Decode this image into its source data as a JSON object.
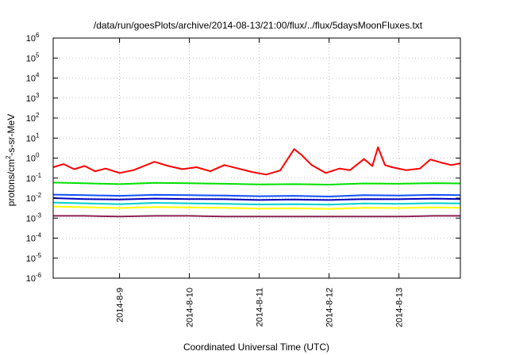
{
  "chart_data": {
    "type": "line",
    "title": "/data/run/goesPlots/archive/2014-08-13/21:00/flux/../flux/5daysMoonFluxes.txt",
    "xlabel": "Coordinated Universal Time (UTC)",
    "ylabel": {
      "pre": "protons/cm",
      "sup": "2",
      "post": "-s-sr-MeV"
    },
    "yscale": "log",
    "ylim": [
      1e-06,
      1000000.0
    ],
    "xlim": [
      -0.95,
      4.88
    ],
    "grid": true,
    "x_ticks": [
      {
        "v": 0,
        "label": "2014-8-9"
      },
      {
        "v": 1,
        "label": "2014-8-10"
      },
      {
        "v": 2,
        "label": "2014-8-11"
      },
      {
        "v": 3,
        "label": "2014-8-12"
      },
      {
        "v": 4,
        "label": "2014-8-13"
      }
    ],
    "y_ticks": [
      {
        "v": 1e-06,
        "base": "10",
        "exp": "-6"
      },
      {
        "v": 1e-05,
        "base": "10",
        "exp": "-5"
      },
      {
        "v": 0.0001,
        "base": "10",
        "exp": "-4"
      },
      {
        "v": 0.001,
        "base": "10",
        "exp": "-3"
      },
      {
        "v": 0.01,
        "base": "10",
        "exp": "-2"
      },
      {
        "v": 0.1,
        "base": "10",
        "exp": "-1"
      },
      {
        "v": 1,
        "base": "10",
        "exp": "0"
      },
      {
        "v": 10,
        "base": "10",
        "exp": "1"
      },
      {
        "v": 100,
        "base": "10",
        "exp": "2"
      },
      {
        "v": 1000,
        "base": "10",
        "exp": "3"
      },
      {
        "v": 10000,
        "base": "10",
        "exp": "4"
      },
      {
        "v": 100000,
        "base": "10",
        "exp": "5"
      },
      {
        "v": 1000000,
        "base": "10",
        "exp": "6"
      }
    ],
    "series": [
      {
        "color": "#ffff00",
        "x": [
          -0.95,
          -0.5,
          0,
          0.5,
          1,
          1.5,
          2,
          2.5,
          3,
          3.5,
          4,
          4.5,
          4.88
        ],
        "values": [
          0.0038,
          0.0035,
          0.0032,
          0.0036,
          0.0034,
          0.0033,
          0.003,
          0.0031,
          0.0029,
          0.0033,
          0.0032,
          0.0034,
          0.0033
        ]
      },
      {
        "color": "#00d0d0",
        "x": [
          -0.95,
          -0.5,
          0,
          0.5,
          1,
          1.5,
          2,
          2.5,
          3,
          3.5,
          4,
          4.5,
          4.88
        ],
        "values": [
          0.006,
          0.0055,
          0.005,
          0.0058,
          0.0055,
          0.0052,
          0.0048,
          0.005,
          0.0047,
          0.0054,
          0.0052,
          0.0056,
          0.0054
        ]
      },
      {
        "color": "#0000c0",
        "x": [
          -0.95,
          -0.5,
          0,
          0.5,
          1,
          1.5,
          2,
          2.5,
          3,
          3.5,
          4,
          4.5,
          4.88
        ],
        "values": [
          0.01,
          0.009,
          0.0085,
          0.0095,
          0.009,
          0.0088,
          0.008,
          0.0085,
          0.008,
          0.009,
          0.0088,
          0.0095,
          0.009
        ]
      },
      {
        "color": "#1050ff",
        "x": [
          -0.95,
          -0.5,
          0,
          0.5,
          1,
          1.5,
          2,
          2.5,
          3,
          3.5,
          4,
          4.5,
          4.88
        ],
        "values": [
          0.015,
          0.014,
          0.013,
          0.0145,
          0.014,
          0.0135,
          0.0125,
          0.013,
          0.012,
          0.014,
          0.0135,
          0.0145,
          0.014
        ]
      },
      {
        "color": "#00e000",
        "x": [
          -0.95,
          -0.5,
          0,
          0.5,
          1,
          1.5,
          2,
          2.5,
          3,
          3.5,
          4,
          4.5,
          4.88
        ],
        "values": [
          0.06,
          0.055,
          0.05,
          0.058,
          0.055,
          0.052,
          0.048,
          0.05,
          0.047,
          0.054,
          0.052,
          0.056,
          0.054
        ]
      },
      {
        "color": "#ff0000",
        "x": [
          -0.95,
          -0.8,
          -0.65,
          -0.5,
          -0.35,
          -0.2,
          0,
          0.2,
          0.5,
          0.7,
          0.9,
          1.1,
          1.3,
          1.5,
          1.7,
          1.9,
          2.1,
          2.3,
          2.5,
          2.6,
          2.75,
          2.95,
          3.15,
          3.3,
          3.5,
          3.62,
          3.7,
          3.8,
          3.9,
          4.1,
          4.3,
          4.45,
          4.6,
          4.75,
          4.88
        ],
        "values": [
          0.35,
          0.5,
          0.28,
          0.4,
          0.22,
          0.3,
          0.18,
          0.25,
          0.65,
          0.4,
          0.28,
          0.35,
          0.22,
          0.45,
          0.3,
          0.2,
          0.15,
          0.24,
          2.8,
          1.5,
          0.45,
          0.18,
          0.3,
          0.25,
          0.9,
          0.4,
          3.5,
          0.45,
          0.35,
          0.25,
          0.3,
          0.85,
          0.6,
          0.45,
          0.55
        ]
      },
      {
        "color": "#8b2252",
        "x": [
          -0.95,
          -0.5,
          0,
          0.5,
          1,
          1.5,
          2,
          2.5,
          3,
          3.5,
          4,
          4.5,
          4.88
        ],
        "values": [
          0.0013,
          0.0013,
          0.0012,
          0.0013,
          0.0013,
          0.0012,
          0.0012,
          0.0012,
          0.0012,
          0.0012,
          0.0012,
          0.0013,
          0.0013
        ]
      }
    ]
  }
}
